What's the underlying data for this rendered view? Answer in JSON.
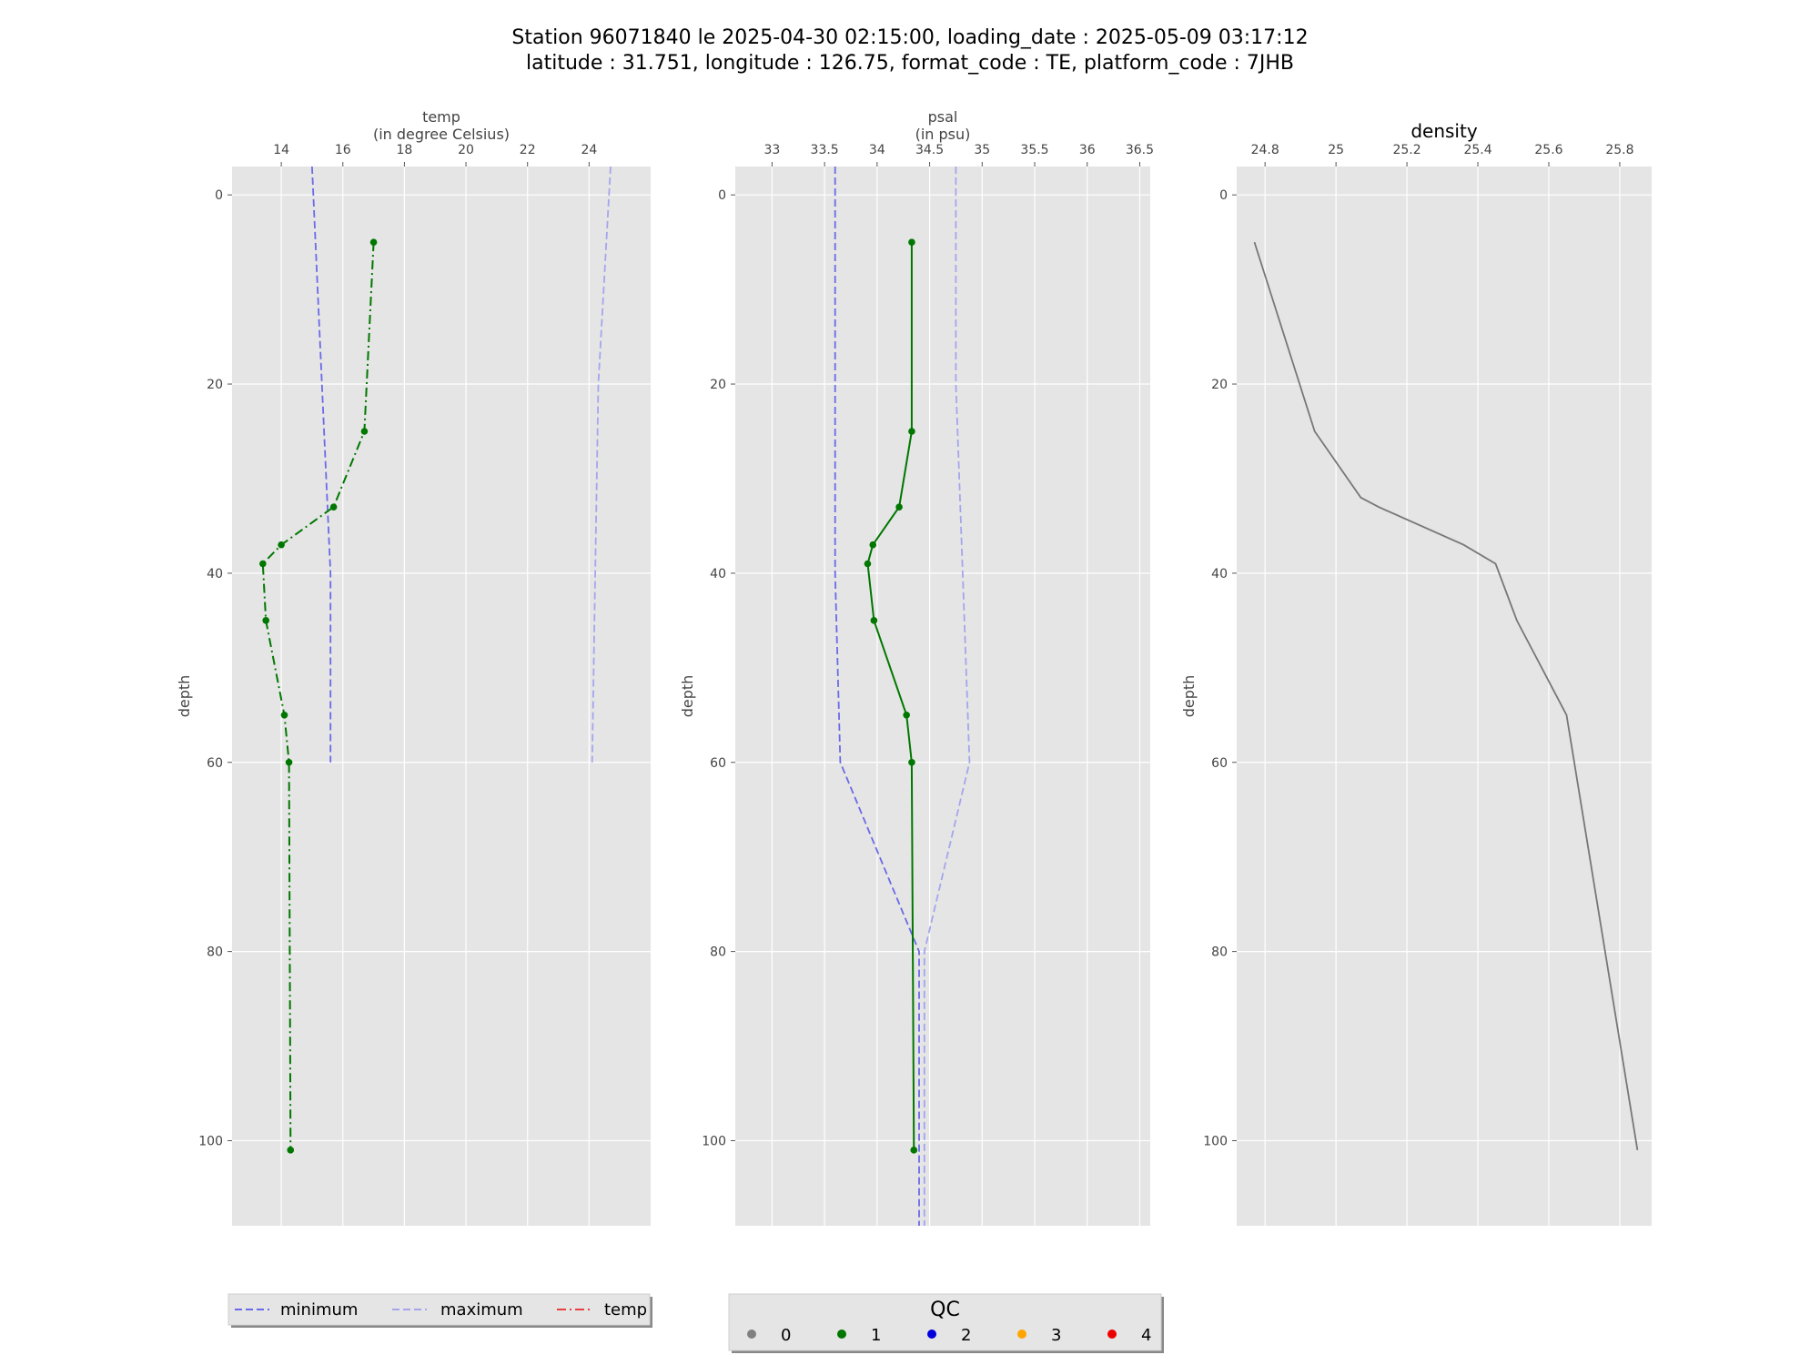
{
  "title": {
    "line1": "Station 96071840 le 2025-04-30 02:15:00, loading_date : 2025-05-09 03:17:12",
    "line2": "latitude : 31.751, longitude : 126.75, format_code : TE, platform_code : 7JHB"
  },
  "colors": {
    "panel_bg": "#e5e5e5",
    "grid": "#ffffff",
    "minimum": "#6a6ae8",
    "maximum": "#a5a5ee",
    "temp_line": "#e84040",
    "qc_line": "#007700",
    "density_line": "#777777"
  },
  "chart_data": [
    {
      "type": "line",
      "axis_orientation": "x on top, depth increasing downward",
      "title": "",
      "xlabel": "temp",
      "xunit": "(in degree Celsius)",
      "ylabel": "depth",
      "xlim": [
        12.4,
        26.0
      ],
      "ylim": [
        109,
        -3
      ],
      "xticks": [
        14,
        16,
        18,
        20,
        22,
        24
      ],
      "yticks": [
        0,
        20,
        40,
        60,
        80,
        100
      ],
      "grid": true,
      "series": [
        {
          "name": "minimum",
          "style": "dashed",
          "color": "#6a6ae8",
          "x": [
            15.0,
            15.6,
            15.6
          ],
          "y": [
            -3,
            40,
            60
          ]
        },
        {
          "name": "maximum",
          "style": "dashed",
          "color": "#a5a5ee",
          "x": [
            24.7,
            24.3,
            24.1
          ],
          "y": [
            -3,
            20,
            60
          ]
        },
        {
          "name": "temp",
          "style": "dashdot",
          "color": "#007700",
          "markers": true,
          "qc": 1,
          "x": [
            17.0,
            16.7,
            15.7,
            14.0,
            13.4,
            13.5,
            14.1,
            14.25,
            14.3
          ],
          "y": [
            5,
            25,
            33,
            37,
            39,
            45,
            55,
            60,
            101
          ]
        }
      ]
    },
    {
      "type": "line",
      "axis_orientation": "x on top, depth increasing downward",
      "title": "",
      "xlabel": "psal",
      "xunit": "(in psu)",
      "ylabel": "depth",
      "xlim": [
        32.65,
        36.6
      ],
      "ylim": [
        109,
        -3
      ],
      "xticks": [
        33.0,
        33.5,
        34.0,
        34.5,
        35.0,
        35.5,
        36.0,
        36.5
      ],
      "yticks": [
        0,
        20,
        40,
        60,
        80,
        100
      ],
      "grid": true,
      "series": [
        {
          "name": "minimum",
          "style": "dashed",
          "color": "#6a6ae8",
          "x": [
            33.6,
            33.6,
            33.65,
            34.4,
            34.4
          ],
          "y": [
            -3,
            40,
            60,
            80,
            109
          ]
        },
        {
          "name": "maximum",
          "style": "dashed",
          "color": "#a5a5ee",
          "x": [
            34.75,
            34.75,
            34.88,
            34.45,
            34.45
          ],
          "y": [
            -3,
            20,
            60,
            80,
            109
          ]
        },
        {
          "name": "psal",
          "style": "solid",
          "color": "#007700",
          "markers": true,
          "qc": 1,
          "x": [
            34.33,
            34.33,
            34.21,
            33.96,
            33.91,
            33.97,
            34.28,
            34.33,
            34.35
          ],
          "y": [
            5,
            25,
            33,
            37,
            39,
            45,
            55,
            60,
            101
          ]
        }
      ]
    },
    {
      "type": "line",
      "axis_orientation": "x on top, depth increasing downward",
      "title": "density",
      "xlabel": "",
      "ylabel": "depth",
      "xlim": [
        24.72,
        25.89
      ],
      "ylim": [
        109,
        -3
      ],
      "xticks": [
        24.8,
        25.0,
        25.2,
        25.4,
        25.6,
        25.8
      ],
      "yticks": [
        0,
        20,
        40,
        60,
        80,
        100
      ],
      "grid": true,
      "series": [
        {
          "name": "density",
          "style": "solid",
          "color": "#777777",
          "markers": false,
          "x": [
            24.77,
            24.94,
            25.07,
            25.12,
            25.36,
            25.45,
            25.51,
            25.65,
            25.85
          ],
          "y": [
            5,
            25,
            32,
            33,
            37,
            39,
            45,
            55,
            101
          ]
        }
      ]
    }
  ],
  "legend_lines": {
    "items": [
      {
        "label": "minimum",
        "style": "dashed",
        "color": "#6a6ae8"
      },
      {
        "label": "maximum",
        "style": "dashed",
        "color": "#a5a5ee"
      },
      {
        "label": "temp",
        "style": "dashdot",
        "color": "#e84040"
      }
    ]
  },
  "legend_qc": {
    "title": "QC",
    "items": [
      {
        "label": "0",
        "color": "#808080"
      },
      {
        "label": "1",
        "color": "#007700"
      },
      {
        "label": "2",
        "color": "#0000dd"
      },
      {
        "label": "3",
        "color": "#ffa500"
      },
      {
        "label": "4",
        "color": "#ee0000"
      }
    ]
  }
}
